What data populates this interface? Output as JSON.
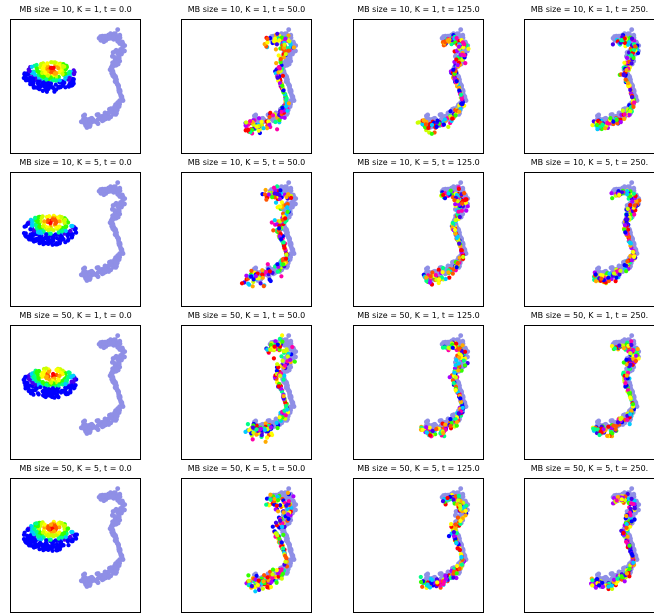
{
  "colors": {
    "target": "#8f8fe6",
    "rainbow": [
      "#0000ff",
      "#4400ee",
      "#00ccff",
      "#00ff88",
      "#33ff00",
      "#ccff00",
      "#ffff00",
      "#ffaa00",
      "#ff5500",
      "#ff0000",
      "#ff00aa",
      "#aa00ff"
    ]
  },
  "chart_data": [
    {
      "type": "scatter",
      "title": "MB size = 10, K = 1, t = 0.0"
    },
    {
      "type": "scatter",
      "title": "MB size = 10, K = 1, t = 50.0"
    },
    {
      "type": "scatter",
      "title": "MB size = 10, K = 1, t = 125.0"
    },
    {
      "type": "scatter",
      "title": "MB size = 10, K = 1, t = 250."
    },
    {
      "type": "scatter",
      "title": "MB size = 10, K = 5, t = 0.0"
    },
    {
      "type": "scatter",
      "title": "MB size = 10, K = 5, t = 50.0"
    },
    {
      "type": "scatter",
      "title": "MB size = 10, K = 5, t = 125.0"
    },
    {
      "type": "scatter",
      "title": "MB size = 10, K = 5, t = 250."
    },
    {
      "type": "scatter",
      "title": "MB size = 50, K = 1, t = 0.0"
    },
    {
      "type": "scatter",
      "title": "MB size = 50, K = 1, t = 50.0"
    },
    {
      "type": "scatter",
      "title": "MB size = 50, K = 1, t = 125.0"
    },
    {
      "type": "scatter",
      "title": "MB size = 50, K = 1, t = 250."
    },
    {
      "type": "scatter",
      "title": "MB size = 50, K = 5, t = 0.0"
    },
    {
      "type": "scatter",
      "title": "MB size = 50, K = 5, t = 50.0"
    },
    {
      "type": "scatter",
      "title": "MB size = 50, K = 5, t = 125.0"
    },
    {
      "type": "scatter",
      "title": "MB size = 50, K = 5, t = 250."
    }
  ]
}
